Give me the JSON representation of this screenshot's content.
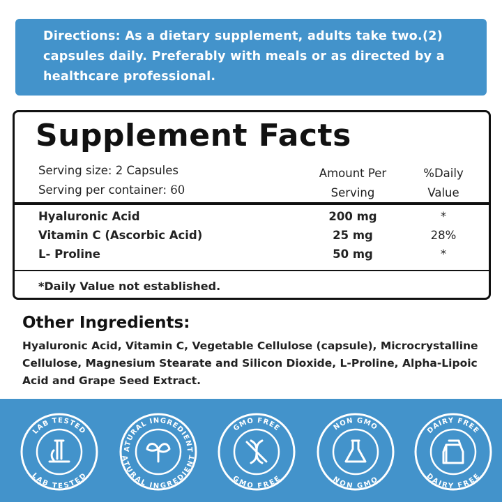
{
  "directions": "Directions: As a dietary supplement, adults take two.(2) capsules daily. Preferably with meals or as directed by a healthcare professional.",
  "facts": {
    "title": "Supplement Facts",
    "serving_size": "Serving size: 2 Capsules",
    "serving_per_container_label": "Serving per container:",
    "serving_per_container_value": "60",
    "amount_header": "Amount Per Serving",
    "daily_value_header": "%Daily Value",
    "rows": [
      [
        "Hyaluronic Acid",
        "200 mg",
        "*"
      ],
      [
        "Vitamin C (Ascorbic Acid)",
        "25 mg",
        "28%"
      ],
      [
        "L- Proline",
        "50 mg",
        "*"
      ]
    ],
    "footnote": "*Daily Value not established."
  },
  "other_ingredients": {
    "title": "Other Ingredients:",
    "text": "Hyaluronic Acid, Vitamin C, Vegetable Cellulose (capsule), Microcrystalline Cellulose, Magnesium Stearate and Silicon Dioxide, L-Proline, Alpha-Lipoic Acid and Grape Seed Extract."
  },
  "badges": [
    "LAB TESTED",
    "NATURAL INGREDIENTS",
    "GMO FREE",
    "NON GMO",
    "DAIRY FREE"
  ]
}
